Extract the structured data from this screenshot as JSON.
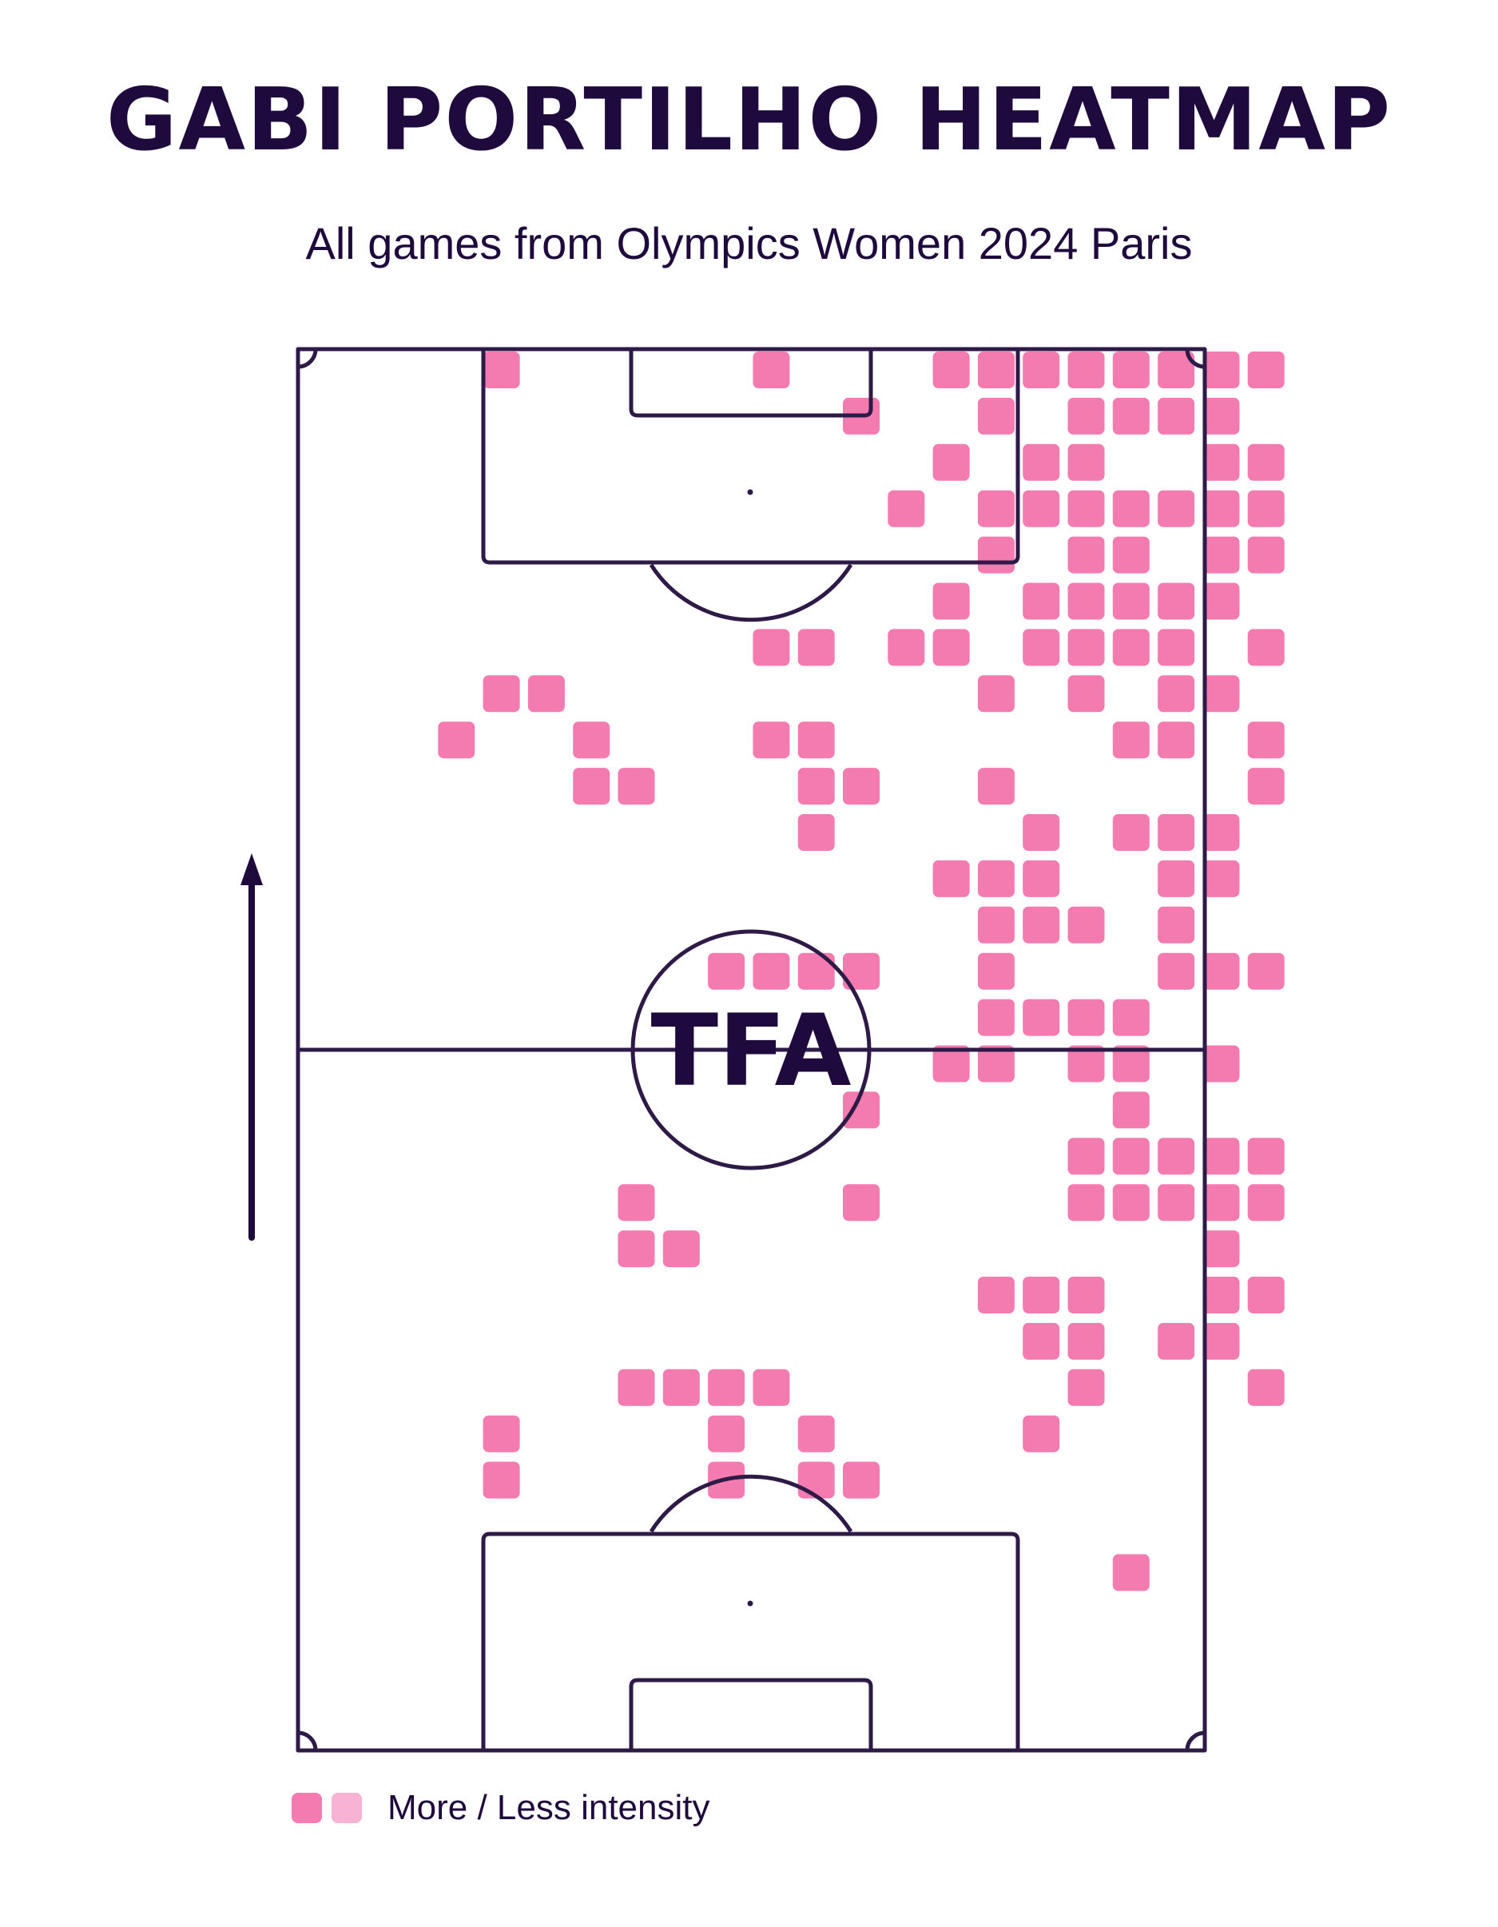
{
  "chart_data": {
    "type": "heatmap",
    "title": "GABI PORTILHO HEATMAP",
    "subtitle": "All games from Olympics Women 2024 Paris",
    "legend_label": "More / Less intensity",
    "logo_text": "TFA",
    "orientation": "vertical, attacking upward",
    "grid": {
      "columns": 20,
      "rows": 30,
      "column_range": [
        0,
        19
      ],
      "row_range": [
        0,
        29
      ],
      "origin": "top-left cell of pitch"
    },
    "colors": {
      "more_intensity": "#f47bb0",
      "less_intensity": "#f8b2d3",
      "lines": "#2e1a47",
      "text": "#1e0a3c"
    },
    "cells": [
      [
        2,
        0
      ],
      [
        8,
        0
      ],
      [
        12,
        0
      ],
      [
        13,
        0
      ],
      [
        14,
        0
      ],
      [
        15,
        0
      ],
      [
        16,
        0
      ],
      [
        17,
        0
      ],
      [
        18,
        0
      ],
      [
        19,
        0
      ],
      [
        10,
        1
      ],
      [
        13,
        1
      ],
      [
        15,
        1
      ],
      [
        16,
        1
      ],
      [
        17,
        1
      ],
      [
        18,
        1
      ],
      [
        12,
        2
      ],
      [
        14,
        2
      ],
      [
        15,
        2
      ],
      [
        18,
        2
      ],
      [
        19,
        2
      ],
      [
        11,
        3
      ],
      [
        13,
        3
      ],
      [
        14,
        3
      ],
      [
        15,
        3
      ],
      [
        16,
        3
      ],
      [
        17,
        3
      ],
      [
        18,
        3
      ],
      [
        19,
        3
      ],
      [
        13,
        4
      ],
      [
        15,
        4
      ],
      [
        16,
        4
      ],
      [
        18,
        4
      ],
      [
        19,
        4
      ],
      [
        12,
        5
      ],
      [
        14,
        5
      ],
      [
        15,
        5
      ],
      [
        16,
        5
      ],
      [
        17,
        5
      ],
      [
        18,
        5
      ],
      [
        8,
        6
      ],
      [
        9,
        6
      ],
      [
        11,
        6
      ],
      [
        12,
        6
      ],
      [
        14,
        6
      ],
      [
        15,
        6
      ],
      [
        16,
        6
      ],
      [
        17,
        6
      ],
      [
        19,
        6
      ],
      [
        2,
        7
      ],
      [
        3,
        7
      ],
      [
        13,
        7
      ],
      [
        15,
        7
      ],
      [
        17,
        7
      ],
      [
        18,
        7
      ],
      [
        1,
        8
      ],
      [
        4,
        8
      ],
      [
        8,
        8
      ],
      [
        9,
        8
      ],
      [
        16,
        8
      ],
      [
        17,
        8
      ],
      [
        19,
        8
      ],
      [
        4,
        9
      ],
      [
        5,
        9
      ],
      [
        9,
        9
      ],
      [
        10,
        9
      ],
      [
        13,
        9
      ],
      [
        19,
        9
      ],
      [
        9,
        10
      ],
      [
        14,
        10
      ],
      [
        16,
        10
      ],
      [
        17,
        10
      ],
      [
        18,
        10
      ],
      [
        12,
        11
      ],
      [
        13,
        11
      ],
      [
        14,
        11
      ],
      [
        17,
        11
      ],
      [
        18,
        11
      ],
      [
        13,
        12
      ],
      [
        14,
        12
      ],
      [
        15,
        12
      ],
      [
        17,
        12
      ],
      [
        7,
        13
      ],
      [
        8,
        13
      ],
      [
        9,
        13
      ],
      [
        10,
        13
      ],
      [
        13,
        13
      ],
      [
        17,
        13
      ],
      [
        18,
        13
      ],
      [
        19,
        13
      ],
      [
        13,
        14
      ],
      [
        14,
        14
      ],
      [
        15,
        14
      ],
      [
        16,
        14
      ],
      [
        12,
        15
      ],
      [
        13,
        15
      ],
      [
        15,
        15
      ],
      [
        16,
        15
      ],
      [
        18,
        15
      ],
      [
        10,
        16
      ],
      [
        16,
        16
      ],
      [
        15,
        17
      ],
      [
        16,
        17
      ],
      [
        17,
        17
      ],
      [
        18,
        17
      ],
      [
        19,
        17
      ],
      [
        5,
        18
      ],
      [
        10,
        18
      ],
      [
        15,
        18
      ],
      [
        16,
        18
      ],
      [
        17,
        18
      ],
      [
        18,
        18
      ],
      [
        19,
        18
      ],
      [
        5,
        19
      ],
      [
        6,
        19
      ],
      [
        18,
        19
      ],
      [
        13,
        20
      ],
      [
        14,
        20
      ],
      [
        15,
        20
      ],
      [
        18,
        20
      ],
      [
        19,
        20
      ],
      [
        14,
        21
      ],
      [
        15,
        21
      ],
      [
        17,
        21
      ],
      [
        18,
        21
      ],
      [
        5,
        22
      ],
      [
        6,
        22
      ],
      [
        7,
        22
      ],
      [
        8,
        22
      ],
      [
        15,
        22
      ],
      [
        19,
        22
      ],
      [
        2,
        23
      ],
      [
        7,
        23
      ],
      [
        9,
        23
      ],
      [
        14,
        23
      ],
      [
        2,
        24
      ],
      [
        7,
        24
      ],
      [
        9,
        24
      ],
      [
        10,
        24
      ],
      [
        16,
        26
      ]
    ]
  }
}
